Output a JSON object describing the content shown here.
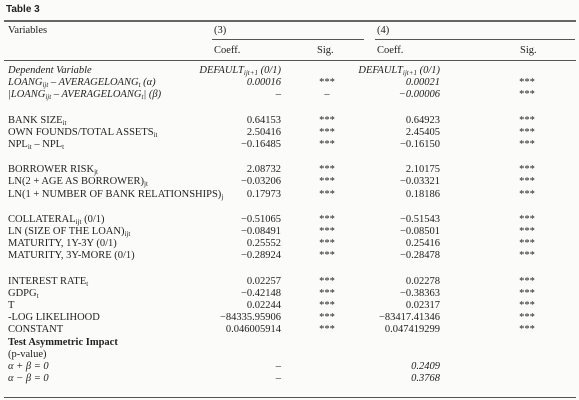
{
  "title": "Table 3",
  "header": {
    "variables": "Variables",
    "col3": "(3)",
    "col4": "(4)",
    "coeff3": "Coeff.",
    "sig3": "Sig.",
    "coeff4": "Coeff.",
    "sig4": "Sig."
  },
  "groups": [
    [
      {
        "italic": true,
        "label": [
          {
            "text": "Dependent Variable"
          }
        ],
        "c3": [
          {
            "text": "DEFAULT"
          },
          {
            "sub": "ijt+1"
          },
          {
            "text": " (0/1)"
          }
        ],
        "c4": [
          {
            "text": "DEFAULT"
          },
          {
            "sub": "ijt+1"
          },
          {
            "text": " (0/1)"
          }
        ]
      },
      {
        "italic": true,
        "label": [
          {
            "text": "LOANG"
          },
          {
            "sub": "ijt"
          },
          {
            "text": " – AVERAGELOANG"
          },
          {
            "sub": "t"
          },
          {
            "text": " (α)"
          }
        ],
        "c3": [
          {
            "text": "0.00016"
          }
        ],
        "s3": "***",
        "c4": [
          {
            "text": "0.00021"
          }
        ],
        "s4": "***"
      },
      {
        "italic": true,
        "label": [
          {
            "text": "|LOANG"
          },
          {
            "sub": "ijt"
          },
          {
            "text": " – AVERAGELOANG"
          },
          {
            "sub": "t"
          },
          {
            "text": "| (β)"
          }
        ],
        "c3": [
          {
            "text": "–"
          }
        ],
        "s3": "–",
        "c4": [
          {
            "text": "−0.00006"
          }
        ],
        "s4": "***"
      }
    ],
    [
      {
        "label": [
          {
            "text": "BANK SIZE"
          },
          {
            "sub": "it"
          }
        ],
        "c3": [
          {
            "text": "0.64153"
          }
        ],
        "s3": "***",
        "c4": [
          {
            "text": "0.64923"
          }
        ],
        "s4": "***"
      },
      {
        "label": [
          {
            "text": "OWN FOUNDS/TOTAL ASSETS"
          },
          {
            "sub": "it"
          }
        ],
        "c3": [
          {
            "text": "2.50416"
          }
        ],
        "s3": "***",
        "c4": [
          {
            "text": "2.45405"
          }
        ],
        "s4": "***"
      },
      {
        "label": [
          {
            "text": "NPL"
          },
          {
            "sub": "it"
          },
          {
            "text": " – NPL"
          },
          {
            "sub": "t"
          }
        ],
        "c3": [
          {
            "text": "−0.16485"
          }
        ],
        "s3": "***",
        "c4": [
          {
            "text": "−0.16150"
          }
        ],
        "s4": "***"
      }
    ],
    [
      {
        "label": [
          {
            "text": "BORROWER RISK"
          },
          {
            "sub": "jt"
          }
        ],
        "c3": [
          {
            "text": "2.08732"
          }
        ],
        "s3": "***",
        "c4": [
          {
            "text": "2.10175"
          }
        ],
        "s4": "***"
      },
      {
        "label": [
          {
            "text": "LN(2 + AGE AS BORROWER)"
          },
          {
            "sub": "jt"
          }
        ],
        "c3": [
          {
            "text": "−0.03206"
          }
        ],
        "s3": "***",
        "c4": [
          {
            "text": "−0.03321"
          }
        ],
        "s4": "***"
      },
      {
        "label": [
          {
            "text": "LN(1 + NUMBER OF BANK RELATIONSHIPS)"
          },
          {
            "sub": "j"
          }
        ],
        "c3": [
          {
            "text": "0.17973"
          }
        ],
        "s3": "***",
        "c4": [
          {
            "text": "0.18186"
          }
        ],
        "s4": "***"
      }
    ],
    [
      {
        "label": [
          {
            "text": "COLLATERAL"
          },
          {
            "sub": "ijt"
          },
          {
            "text": " (0/1)"
          }
        ],
        "c3": [
          {
            "text": "−0.51065"
          }
        ],
        "s3": "***",
        "c4": [
          {
            "text": "−0.51543"
          }
        ],
        "s4": "***"
      },
      {
        "label": [
          {
            "text": "LN (SIZE OF THE LOAN)"
          },
          {
            "sub": "ijt"
          }
        ],
        "c3": [
          {
            "text": "−0.08491"
          }
        ],
        "s3": "***",
        "c4": [
          {
            "text": "−0.08501"
          }
        ],
        "s4": "***"
      },
      {
        "label": [
          {
            "text": "MATURITY, 1Y-3Y (0/1)"
          }
        ],
        "c3": [
          {
            "text": "0.25552"
          }
        ],
        "s3": "***",
        "c4": [
          {
            "text": "0.25416"
          }
        ],
        "s4": "***"
      },
      {
        "label": [
          {
            "text": "MATURITY, 3Y-MORE (0/1)"
          }
        ],
        "c3": [
          {
            "text": "−0.28924"
          }
        ],
        "s3": "***",
        "c4": [
          {
            "text": "−0.28478"
          }
        ],
        "s4": "***"
      }
    ],
    [
      {
        "label": [
          {
            "text": "INTEREST RATE"
          },
          {
            "sub": "t"
          }
        ],
        "c3": [
          {
            "text": "0.02257"
          }
        ],
        "s3": "***",
        "c4": [
          {
            "text": "0.02278"
          }
        ],
        "s4": "***"
      },
      {
        "label": [
          {
            "text": "GDPG"
          },
          {
            "sub": "t"
          }
        ],
        "c3": [
          {
            "text": "−0.42148"
          }
        ],
        "s3": "***",
        "c4": [
          {
            "text": "−0.38363"
          }
        ],
        "s4": "***"
      },
      {
        "label": [
          {
            "text": "T"
          }
        ],
        "c3": [
          {
            "text": "0.02244"
          }
        ],
        "s3": "***",
        "c4": [
          {
            "text": "0.02317"
          }
        ],
        "s4": "***"
      },
      {
        "label": [
          {
            "text": "-LOG LIKELIHOOD"
          }
        ],
        "c3": [
          {
            "text": "−84335.95906"
          }
        ],
        "s3": "***",
        "c4": [
          {
            "text": "−83417.41346"
          }
        ],
        "s4": "***"
      },
      {
        "label": [
          {
            "text": "CONSTANT"
          }
        ],
        "c3": [
          {
            "text": "0.046005914"
          }
        ],
        "s3": "***",
        "c4": [
          {
            "text": "0.047419299"
          }
        ],
        "s4": "***"
      },
      {
        "bold": true,
        "label": [
          {
            "text": "Test Asymmetric Impact"
          }
        ]
      },
      {
        "label": [
          {
            "text": "(p-value)"
          }
        ]
      },
      {
        "italic": true,
        "label": [
          {
            "text": "α + β = 0"
          }
        ],
        "c3": [
          {
            "text": "–"
          }
        ],
        "c4": [
          {
            "text": "0.2409"
          }
        ]
      },
      {
        "italic": true,
        "label": [
          {
            "text": "α − β = 0"
          }
        ],
        "c3": [
          {
            "text": "–"
          }
        ],
        "c4": [
          {
            "text": "0.3768"
          }
        ]
      }
    ]
  ]
}
